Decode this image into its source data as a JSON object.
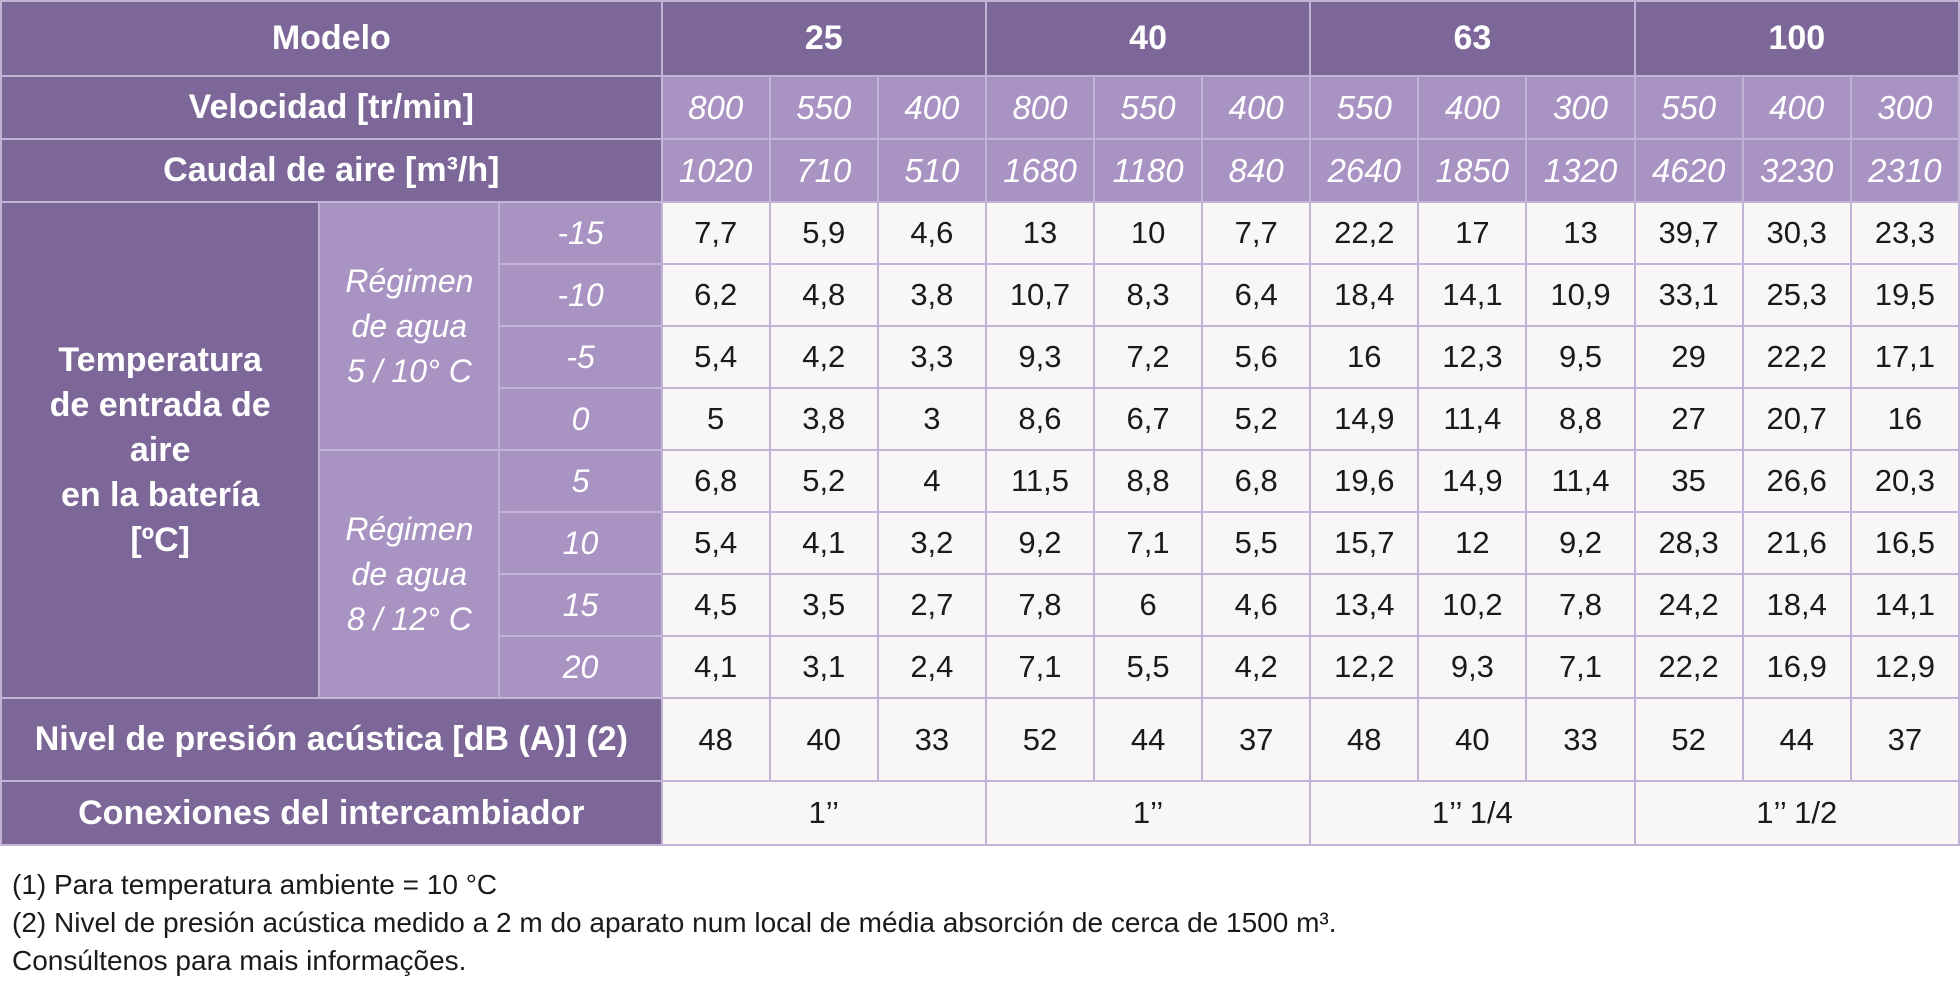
{
  "header": {
    "modelo_label": "Modelo",
    "models": [
      "25",
      "40",
      "63",
      "100"
    ],
    "velocidad_label": "Velocidad [tr/min]",
    "velocidades": [
      "800",
      "550",
      "400",
      "800",
      "550",
      "400",
      "550",
      "400",
      "300",
      "550",
      "400",
      "300"
    ],
    "caudal_label": "Caudal de aire [m³/h]",
    "caudales": [
      "1020",
      "710",
      "510",
      "1680",
      "1180",
      "840",
      "2640",
      "1850",
      "1320",
      "4620",
      "3230",
      "2310"
    ]
  },
  "temperature_section": {
    "label_lines": [
      "Temperatura",
      "de entrada de",
      "aire",
      "en la batería",
      "[ºC]"
    ],
    "regimes": [
      {
        "label_lines": [
          "Régimen",
          "de agua",
          "5 / 10° C"
        ]
      },
      {
        "label_lines": [
          "Régimen",
          "de agua",
          "8 / 12° C"
        ]
      }
    ],
    "rows": [
      {
        "temp": "-15",
        "values": [
          "7,7",
          "5,9",
          "4,6",
          "13",
          "10",
          "7,7",
          "22,2",
          "17",
          "13",
          "39,7",
          "30,3",
          "23,3"
        ]
      },
      {
        "temp": "-10",
        "values": [
          "6,2",
          "4,8",
          "3,8",
          "10,7",
          "8,3",
          "6,4",
          "18,4",
          "14,1",
          "10,9",
          "33,1",
          "25,3",
          "19,5"
        ]
      },
      {
        "temp": "-5",
        "values": [
          "5,4",
          "4,2",
          "3,3",
          "9,3",
          "7,2",
          "5,6",
          "16",
          "12,3",
          "9,5",
          "29",
          "22,2",
          "17,1"
        ]
      },
      {
        "temp": "0",
        "values": [
          "5",
          "3,8",
          "3",
          "8,6",
          "6,7",
          "5,2",
          "14,9",
          "11,4",
          "8,8",
          "27",
          "20,7",
          "16"
        ]
      },
      {
        "temp": "5",
        "values": [
          "6,8",
          "5,2",
          "4",
          "11,5",
          "8,8",
          "6,8",
          "19,6",
          "14,9",
          "11,4",
          "35",
          "26,6",
          "20,3"
        ]
      },
      {
        "temp": "10",
        "values": [
          "5,4",
          "4,1",
          "3,2",
          "9,2",
          "7,1",
          "5,5",
          "15,7",
          "12",
          "9,2",
          "28,3",
          "21,6",
          "16,5"
        ]
      },
      {
        "temp": "15",
        "values": [
          "4,5",
          "3,5",
          "2,7",
          "7,8",
          "6",
          "4,6",
          "13,4",
          "10,2",
          "7,8",
          "24,2",
          "18,4",
          "14,1"
        ]
      },
      {
        "temp": "20",
        "values": [
          "4,1",
          "3,1",
          "2,4",
          "7,1",
          "5,5",
          "4,2",
          "12,2",
          "9,3",
          "7,1",
          "22,2",
          "16,9",
          "12,9"
        ]
      }
    ]
  },
  "nivel": {
    "label": "Nivel de presión acústica [dB (A)] (2)",
    "values": [
      "48",
      "40",
      "33",
      "52",
      "44",
      "37",
      "48",
      "40",
      "33",
      "52",
      "44",
      "37"
    ]
  },
  "conexiones": {
    "label": "Conexiones del intercambiador",
    "values": [
      "1’’",
      "1’’",
      "1’’ 1/4",
      "1’’ 1/2"
    ]
  },
  "notes": [
    "(1) Para temperatura ambiente = 10 °C",
    "(2) Nivel de presión acústica medido a 2 m do aparato num local de média absorción de cerca de 1500 m³.",
    "Consúltenos para mais informações."
  ]
}
